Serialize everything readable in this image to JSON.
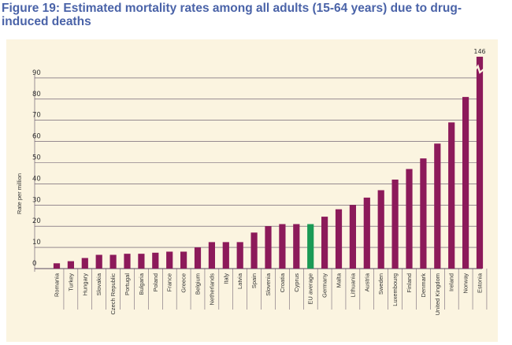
{
  "figure": {
    "title": "Figure 19: Estimated mortality rates among all adults (15-64 years) due to drug-induced deaths"
  },
  "colors": {
    "bar": "#8c1a5a",
    "highlight": "#1a9a55",
    "background": "#fbf4e0",
    "grid": "#5a4a60",
    "title": "#4a63a8"
  },
  "chart_data": {
    "type": "bar",
    "title": "Figure 19: Estimated mortality rates among all adults (15-64 years) due to drug-induced deaths",
    "xlabel": "",
    "ylabel": "Rate per million",
    "ylim": [
      0,
      95
    ],
    "yticks": [
      0,
      10,
      20,
      30,
      40,
      50,
      60,
      70,
      80,
      90
    ],
    "grid": true,
    "axis_break": true,
    "highlight_category": "EU average",
    "categories": [
      "Romania",
      "Turkey",
      "Hungary",
      "Slovakia",
      "Czech Republic",
      "Portugal",
      "Bulgaria",
      "Poland",
      "France",
      "Greece",
      "Belgium",
      "Netherlands",
      "Italy",
      "Latvia",
      "Spain",
      "Slovenia",
      "Croatia",
      "Cyprus",
      "EU average",
      "Germany",
      "Malta",
      "Lithuania",
      "Austria",
      "Sweden",
      "Luxembourg",
      "Finland",
      "Denmark",
      "United Kingdom",
      "Ireland",
      "Norway",
      "Estonia"
    ],
    "values": [
      2.5,
      3.5,
      5,
      6.5,
      6.5,
      7,
      7,
      7.5,
      8,
      8,
      10,
      12.5,
      12.5,
      12.5,
      17,
      20,
      21,
      21,
      21,
      24.5,
      28,
      30,
      33.5,
      37,
      42,
      47,
      52,
      59,
      69,
      81,
      146
    ],
    "annotations": [
      {
        "category": "Estonia",
        "text": "146"
      }
    ]
  }
}
